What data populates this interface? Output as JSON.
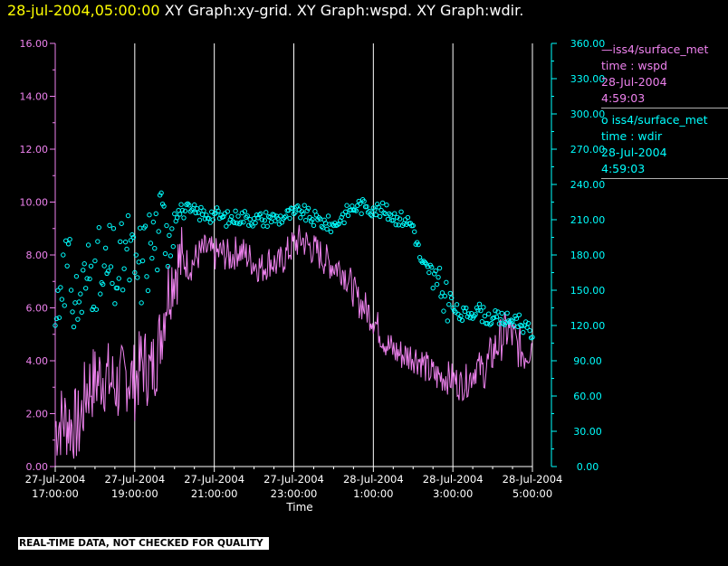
{
  "header": {
    "timestamp": "28-jul-2004,05:00:00",
    "graphs": "XY Graph:xy-grid.  XY Graph:wspd.  XY Graph:wdir."
  },
  "legend": {
    "wspd": {
      "marker": "—",
      "source": "iss4/surface_met",
      "var": "time : wspd",
      "date": "28-Jul-2004",
      "time": "4:59:03"
    },
    "wdir": {
      "marker": "o",
      "source": "iss4/surface_met",
      "var": "time : wdir",
      "date": "28-Jul-2004",
      "time": "4:59:03"
    }
  },
  "banner": "REAL-TIME DATA, NOT CHECKED FOR QUALITY",
  "chart_data": {
    "type": "line",
    "xlabel": "Time",
    "x_ticks": [
      {
        "hour": 0,
        "line1": "27-Jul-2004",
        "line2": "17:00:00"
      },
      {
        "hour": 2,
        "line1": "27-Jul-2004",
        "line2": "19:00:00"
      },
      {
        "hour": 4,
        "line1": "27-Jul-2004",
        "line2": "21:00:00"
      },
      {
        "hour": 6,
        "line1": "27-Jul-2004",
        "line2": "23:00:00"
      },
      {
        "hour": 8,
        "line1": "28-Jul-2004",
        "line2": "1:00:00"
      },
      {
        "hour": 10,
        "line1": "28-Jul-2004",
        "line2": "3:00:00"
      },
      {
        "hour": 12,
        "line1": "28-Jul-2004",
        "line2": "5:00:00"
      }
    ],
    "xlim": [
      0,
      12
    ],
    "y_left": {
      "ylim": [
        0,
        16
      ],
      "ticks": [
        "0.00",
        "2.00",
        "4.00",
        "6.00",
        "8.00",
        "10.00",
        "12.00",
        "14.00",
        "16.00"
      ]
    },
    "y_right": {
      "ylim": [
        0,
        360
      ],
      "ticks": [
        "0.00",
        "30.00",
        "60.00",
        "90.00",
        "120.00",
        "150.00",
        "180.00",
        "210.00",
        "240.00",
        "270.00",
        "300.00",
        "330.00",
        "360.00"
      ]
    },
    "grid": "vertical",
    "colors": {
      "wspd": "#ee82ee",
      "wdir": "#00ffff",
      "axis": "#ffffff"
    },
    "series": [
      {
        "name": "time : wspd",
        "axis": "left",
        "style": "line",
        "x": [
          0.0,
          0.2,
          0.4,
          0.6,
          0.8,
          1.0,
          1.2,
          1.4,
          1.6,
          1.8,
          2.0,
          2.2,
          2.4,
          2.6,
          2.8,
          3.0,
          3.2,
          3.4,
          3.6,
          3.8,
          4.0,
          4.2,
          4.4,
          4.6,
          4.8,
          5.0,
          5.2,
          5.4,
          5.6,
          5.8,
          6.0,
          6.2,
          6.4,
          6.6,
          6.8,
          7.0,
          7.2,
          7.4,
          7.6,
          7.8,
          8.0,
          8.2,
          8.4,
          8.6,
          8.8,
          9.0,
          9.2,
          9.4,
          9.6,
          9.8,
          10.0,
          10.2,
          10.4,
          10.6,
          10.8,
          11.0,
          11.2,
          11.4,
          11.6,
          11.8,
          12.0
        ],
        "y": [
          1.5,
          1.8,
          1.6,
          1.5,
          3.0,
          3.2,
          3.5,
          3.2,
          3.0,
          3.5,
          3.2,
          4.0,
          3.5,
          4.5,
          6.5,
          7.5,
          7.8,
          7.6,
          8.0,
          8.2,
          8.0,
          8.1,
          7.9,
          8.2,
          8.0,
          7.7,
          7.5,
          7.8,
          7.6,
          8.0,
          8.4,
          8.6,
          8.3,
          8.1,
          7.8,
          7.6,
          7.5,
          7.0,
          6.3,
          6.0,
          5.6,
          5.0,
          4.5,
          4.3,
          4.2,
          4.2,
          4.0,
          3.6,
          3.4,
          3.4,
          3.3,
          3.1,
          3.3,
          3.8,
          3.6,
          4.3,
          4.8,
          5.2,
          4.6,
          4.3,
          4.7
        ]
      },
      {
        "name": "time : wdir",
        "axis": "right",
        "style": "markers",
        "x": [
          0.0,
          0.2,
          0.4,
          0.6,
          0.8,
          1.0,
          1.2,
          1.4,
          1.6,
          1.8,
          2.0,
          2.2,
          2.4,
          2.6,
          2.8,
          3.0,
          3.2,
          3.4,
          3.6,
          3.8,
          4.0,
          4.2,
          4.4,
          4.6,
          4.8,
          5.0,
          5.2,
          5.4,
          5.6,
          5.8,
          6.0,
          6.2,
          6.4,
          6.6,
          6.8,
          7.0,
          7.2,
          7.4,
          7.6,
          7.8,
          8.0,
          8.2,
          8.4,
          8.6,
          8.8,
          9.0,
          9.2,
          9.4,
          9.6,
          9.8,
          10.0,
          10.2,
          10.4,
          10.6,
          10.8,
          11.0,
          11.2,
          11.4,
          11.6,
          11.8,
          12.0
        ],
        "y": [
          120,
          180,
          150,
          140,
          160,
          175,
          155,
          170,
          160,
          185,
          165,
          175,
          190,
          200,
          205,
          215,
          218,
          217,
          216,
          214,
          215,
          212,
          210,
          213,
          212,
          211,
          210,
          212,
          211,
          213,
          215,
          217,
          212,
          210,
          207,
          205,
          212,
          218,
          222,
          221,
          220,
          218,
          215,
          212,
          210,
          205,
          175,
          165,
          155,
          145,
          135,
          128,
          130,
          135,
          128,
          126,
          125,
          124,
          126,
          120,
          110
        ]
      }
    ]
  }
}
